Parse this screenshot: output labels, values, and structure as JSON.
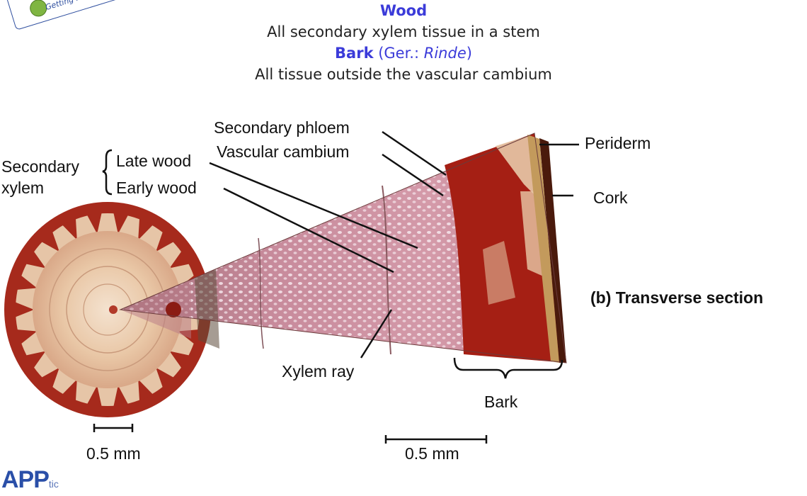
{
  "header": {
    "wood_title": "Wood",
    "wood_definition": "All secondary xylem tissue in a stem",
    "bark_title": "Bark",
    "bark_paren_open": "(Ger.: ",
    "bark_german": "Rinde",
    "bark_paren_close": ")",
    "bark_definition": "All tissue outside the vascular cambium"
  },
  "logo": {
    "text": "Getting Pr",
    "brand": "APP",
    "brand_small": "tic"
  },
  "labels": {
    "secondary_phloem": "Secondary phloem",
    "vascular_cambium": "Vascular cambium",
    "secondary": "Secondary",
    "xylem": "xylem",
    "late_wood": "Late wood",
    "early_wood": "Early wood",
    "periderm": "Periderm",
    "cork": "Cork",
    "transverse_section": "(b) Transverse section",
    "xylem_ray": "Xylem ray",
    "bark": "Bark",
    "scale_left": "0.5 mm",
    "scale_right": "0.5 mm"
  },
  "colors": {
    "highlight": "#3b3bd9",
    "bark_red": "#9c1f12",
    "wood_pink": "#c98a9c",
    "wood_tan": "#e8c9a8"
  }
}
